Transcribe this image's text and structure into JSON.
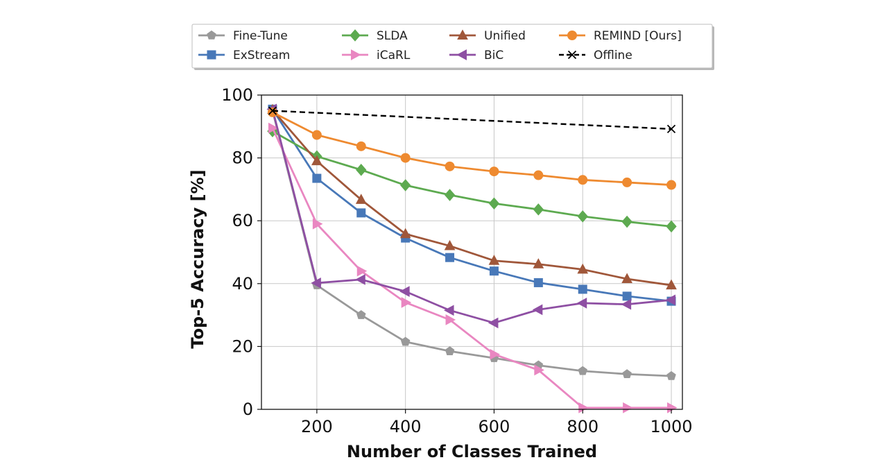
{
  "chart_data": {
    "type": "line",
    "title": "",
    "xlabel": "Number of Classes Trained",
    "ylabel": "Top-5 Accuracy [%]",
    "xlim": [
      75,
      1025
    ],
    "ylim": [
      0,
      100
    ],
    "xticks": [
      200,
      400,
      600,
      800,
      1000
    ],
    "yticks": [
      0,
      20,
      40,
      60,
      80,
      100
    ],
    "grid": true,
    "legend_position": "top (above plot, 4 columns)",
    "series": [
      {
        "name": "Fine-Tune",
        "color": "#999999",
        "marker": "pentagon",
        "dashed": false,
        "x": [
          100,
          200,
          300,
          400,
          500,
          600,
          700,
          800,
          900,
          1000
        ],
        "y": [
          95,
          39.5,
          30,
          21.5,
          18.5,
          16.3,
          14,
          12.2,
          11.2,
          10.6
        ]
      },
      {
        "name": "ExStream",
        "color": "#4878b8",
        "marker": "square",
        "dashed": false,
        "x": [
          100,
          200,
          300,
          400,
          500,
          600,
          700,
          800,
          900,
          1000
        ],
        "y": [
          95.5,
          73.5,
          62.5,
          54.5,
          48.3,
          44,
          40.3,
          38.2,
          36,
          34.4
        ]
      },
      {
        "name": "SLDA",
        "color": "#5daa50",
        "marker": "diamond",
        "dashed": false,
        "x": [
          100,
          200,
          300,
          400,
          500,
          600,
          700,
          800,
          900,
          1000
        ],
        "y": [
          88.5,
          80.5,
          76.2,
          71.3,
          68.2,
          65.5,
          63.6,
          61.4,
          59.7,
          58.2
        ]
      },
      {
        "name": "iCaRL",
        "color": "#e987c1",
        "marker": "triangle-right",
        "dashed": false,
        "x": [
          100,
          200,
          300,
          400,
          500,
          600,
          700,
          800,
          900,
          1000
        ],
        "y": [
          89.5,
          59,
          44,
          34,
          28.5,
          17.5,
          12.5,
          0.5,
          0.5,
          0.5
        ]
      },
      {
        "name": "Unified",
        "color": "#a0573a",
        "marker": "triangle-up",
        "dashed": false,
        "x": [
          100,
          200,
          300,
          400,
          500,
          600,
          700,
          800,
          900,
          1000
        ],
        "y": [
          95.3,
          79,
          66.7,
          55.8,
          52,
          47.3,
          46.2,
          44.5,
          41.5,
          39.5
        ]
      },
      {
        "name": "BiC",
        "color": "#8e4fa3",
        "marker": "triangle-left",
        "dashed": false,
        "x": [
          100,
          200,
          300,
          400,
          500,
          600,
          700,
          800,
          900,
          1000
        ],
        "y": [
          95.5,
          40.2,
          41.3,
          37.5,
          31.5,
          27.5,
          31.7,
          33.8,
          33.4,
          34.8
        ]
      },
      {
        "name": "REMIND [Ours]",
        "color": "#ee8a30",
        "marker": "circle",
        "dashed": false,
        "x": [
          100,
          200,
          300,
          400,
          500,
          600,
          700,
          800,
          900,
          1000
        ],
        "y": [
          94.5,
          87.3,
          83.7,
          80,
          77.3,
          75.7,
          74.5,
          73,
          72.2,
          71.4
        ]
      },
      {
        "name": "Offline",
        "color": "#000000",
        "marker": "x",
        "dashed": true,
        "x": [
          100,
          1000
        ],
        "y": [
          95,
          89.2
        ]
      }
    ]
  }
}
